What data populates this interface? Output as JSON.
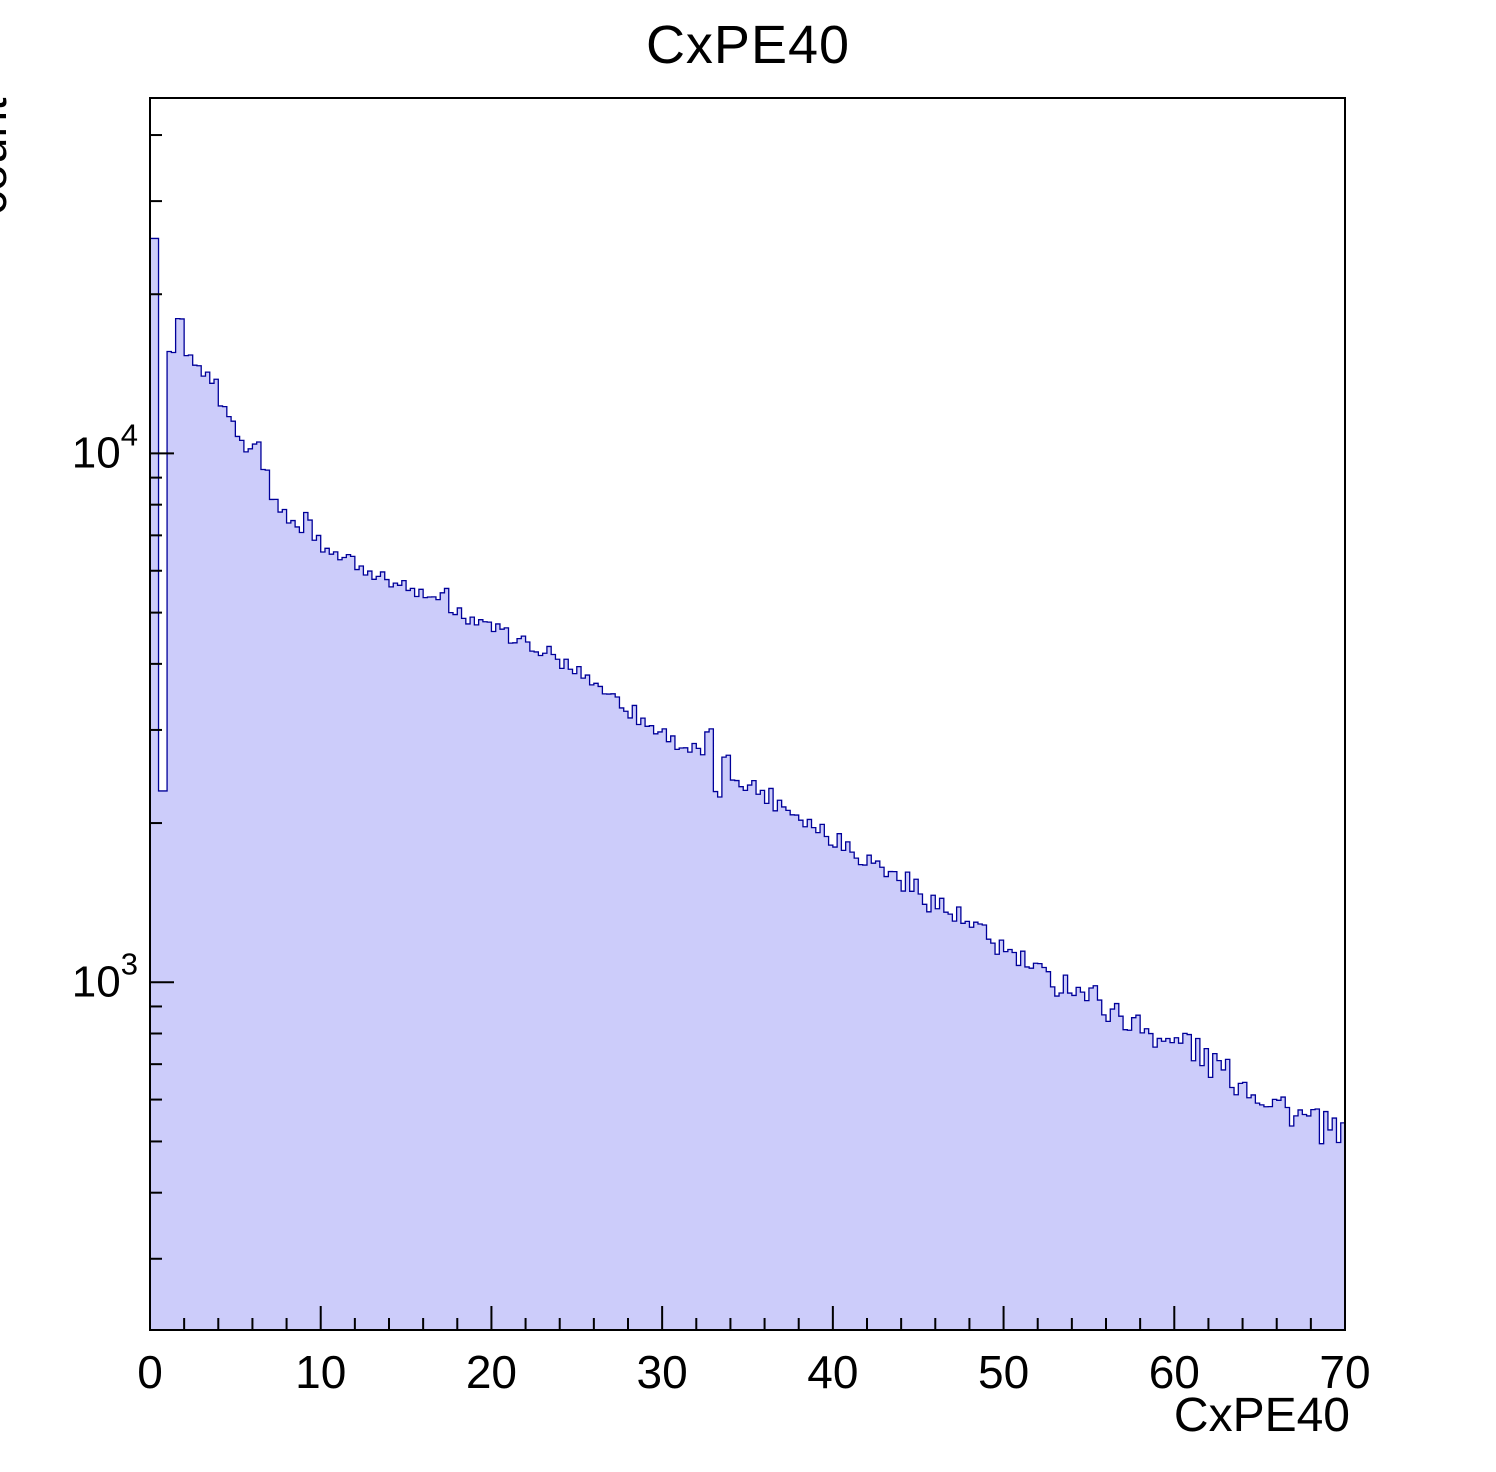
{
  "title": "CxPE40",
  "axes": {
    "ylabel": "count",
    "xlabel": "CxPE40"
  },
  "chart_data": {
    "type": "bar",
    "histogram": true,
    "title": "CxPE40",
    "xlabel": "CxPE40",
    "ylabel": "count",
    "yscale": "log",
    "xlim": [
      0,
      70
    ],
    "ylim": [
      220,
      47000
    ],
    "x_major_ticks": [
      0,
      10,
      20,
      30,
      40,
      50,
      60,
      70
    ],
    "x_minor_step": 2,
    "y_major_tick_exponents": [
      3,
      4
    ],
    "fill_color": "#ccccfa",
    "line_color": "#000099",
    "frame_color": "#000000",
    "bin_start": 0,
    "bin_width": 0.5,
    "values": [
      25500,
      2300,
      15500,
      17800,
      15200,
      14600,
      14100,
      13700,
      12400,
      11600,
      10700,
      10100,
      10500,
      9300,
      8300,
      7800,
      7500,
      7200,
      7600,
      6900,
      6600,
      6500,
      6300,
      6400,
      6100,
      6000,
      5900,
      5850,
      5700,
      5650,
      5500,
      5450,
      5300,
      5250,
      5550,
      4900,
      5000,
      4850,
      4800,
      4700,
      4650,
      4550,
      4500,
      4400,
      4350,
      4150,
      4250,
      4050,
      4000,
      3900,
      3850,
      3750,
      3650,
      3550,
      3450,
      3350,
      3250,
      3150,
      3050,
      3000,
      2950,
      2850,
      2800,
      2750,
      2700,
      2900,
      2300,
      2600,
      2450,
      2400,
      2350,
      2300,
      2250,
      2200,
      2150,
      2100,
      2050,
      2000,
      1950,
      1900,
      1870,
      1820,
      1780,
      1730,
      1700,
      1660,
      1620,
      1580,
      1550,
      1510,
      1470,
      1430,
      1400,
      1360,
      1330,
      1290,
      1260,
      1230,
      1200,
      1170,
      1140,
      1110,
      1090,
      1060,
      1030,
      1010,
      990,
      1000,
      980,
      950,
      940,
      910,
      890,
      870,
      850,
      830,
      820,
      800,
      790,
      770,
      760,
      790,
      740,
      720,
      700,
      690,
      670,
      650,
      640,
      620,
      610,
      600,
      590,
      570,
      560,
      550,
      540,
      530,
      520,
      510
    ],
    "noise": {
      "sub_bins": 2,
      "amplitude_log10_start": 0.004,
      "amplitude_log10_end": 0.032
    }
  }
}
